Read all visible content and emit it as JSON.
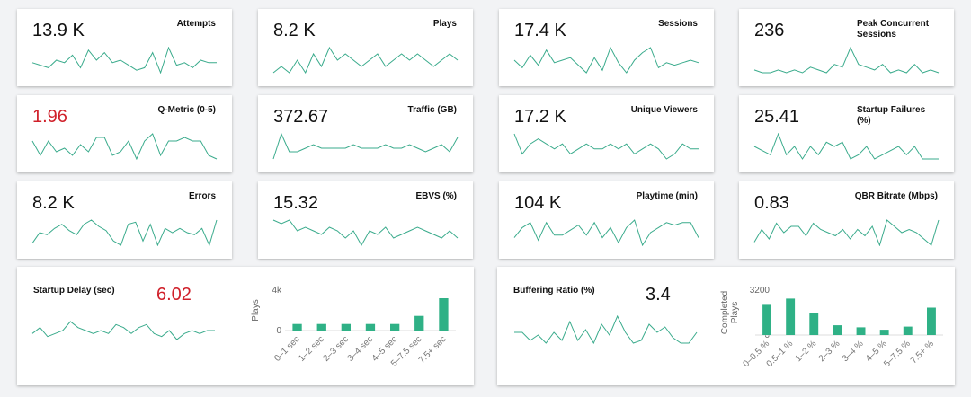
{
  "colors": {
    "accent": "#3aab8c",
    "alert": "#d0202a",
    "bar": "#2fb186"
  },
  "metrics": [
    {
      "value": "13.9 K",
      "label": "Attempts",
      "red": false,
      "trend": [
        5,
        4,
        3,
        6,
        5,
        8,
        3,
        10,
        6,
        9,
        5,
        6,
        4,
        2,
        3,
        9,
        1,
        11,
        4,
        5,
        3,
        6,
        5,
        5
      ]
    },
    {
      "value": "8.2 K",
      "label": "Plays",
      "red": false,
      "trend": [
        4,
        5,
        4,
        6,
        4,
        7,
        5,
        8,
        6,
        7,
        6,
        5,
        6,
        7,
        5,
        6,
        7,
        6,
        7,
        6,
        5,
        6,
        7,
        6
      ]
    },
    {
      "value": "17.4 K",
      "label": "Sessions",
      "red": false,
      "trend": [
        6,
        3,
        8,
        4,
        10,
        5,
        6,
        7,
        4,
        1,
        7,
        2,
        11,
        5,
        1,
        6,
        9,
        11,
        3,
        5,
        4,
        5,
        6,
        5
      ]
    },
    {
      "value": "236",
      "label": "Peak Concurrent Sessions",
      "red": false,
      "trend": [
        3,
        2,
        2,
        3,
        2,
        3,
        2,
        4,
        3,
        2,
        5,
        4,
        11,
        5,
        4,
        3,
        5,
        2,
        3,
        2,
        5,
        2,
        3,
        2
      ]
    },
    {
      "value": "1.96",
      "label": "Q-Metric (0-5)",
      "red": true,
      "trend": [
        7,
        3,
        7,
        4,
        5,
        3,
        6,
        4,
        8,
        8,
        3,
        4,
        7,
        2,
        7,
        9,
        3,
        7,
        7,
        8,
        7,
        7,
        3,
        2
      ]
    },
    {
      "value": "372.67",
      "label": "Traffic (GB)",
      "red": false,
      "trend": [
        3,
        10,
        5,
        5,
        6,
        7,
        6,
        6,
        6,
        6,
        7,
        6,
        6,
        6,
        7,
        6,
        6,
        7,
        6,
        5,
        6,
        7,
        5,
        9
      ]
    },
    {
      "value": "17.2 K",
      "label": "Unique Viewers",
      "red": false,
      "trend": [
        8,
        4,
        6,
        7,
        6,
        5,
        6,
        4,
        5,
        6,
        5,
        5,
        6,
        5,
        6,
        4,
        5,
        6,
        5,
        3,
        4,
        6,
        5,
        5
      ]
    },
    {
      "value": "25.41",
      "label": "Startup Failures (%)",
      "red": false,
      "trend": [
        6,
        5,
        4,
        9,
        4,
        6,
        3,
        6,
        4,
        7,
        6,
        7,
        3,
        4,
        6,
        3,
        4,
        5,
        6,
        4,
        6,
        3,
        3,
        3
      ]
    },
    {
      "value": "8.2 K",
      "label": "Errors",
      "red": false,
      "trend": [
        2,
        7,
        6,
        9,
        11,
        8,
        6,
        11,
        13,
        10,
        8,
        3,
        1,
        11,
        12,
        3,
        11,
        1,
        9,
        7,
        9,
        7,
        6,
        9,
        1,
        13
      ]
    },
    {
      "value": "15.32",
      "label": "EBVS (%)",
      "red": false,
      "trend": [
        9,
        8,
        9,
        6,
        7,
        6,
        5,
        7,
        6,
        4,
        6,
        2,
        6,
        5,
        7,
        4,
        5,
        6,
        7,
        6,
        5,
        4,
        6,
        4
      ]
    },
    {
      "value": "104 K",
      "label": "Playtime (min)",
      "red": false,
      "trend": [
        4,
        8,
        10,
        3,
        10,
        5,
        5,
        7,
        9,
        5,
        10,
        4,
        8,
        2,
        8,
        11,
        1,
        6,
        8,
        10,
        9,
        10,
        10,
        4
      ]
    },
    {
      "value": "0.83",
      "label": "QBR Bitrate (Mbps)",
      "red": false,
      "trend": [
        2,
        6,
        3,
        8,
        5,
        7,
        7,
        4,
        8,
        6,
        5,
        4,
        6,
        3,
        6,
        4,
        7,
        1,
        9,
        7,
        5,
        6,
        5,
        3,
        1,
        9
      ]
    }
  ],
  "startup_panel": {
    "label": "Startup Delay (sec)",
    "value": "6.02",
    "trend": [
      5,
      7,
      4,
      5,
      6,
      9,
      7,
      6,
      5,
      6,
      5,
      8,
      7,
      5,
      7,
      8,
      5,
      4,
      6,
      3,
      5,
      6,
      5,
      6,
      6
    ],
    "chart_data": {
      "type": "bar",
      "ylabel": "Plays",
      "ytick_labels": [
        "4k",
        "0"
      ],
      "ylim": [
        0,
        4000
      ],
      "categories": [
        "0–1 sec",
        "1–2 sec",
        "2–3 sec",
        "3–4 sec",
        "4–5 sec",
        "5–7.5 sec",
        "7.5+ sec"
      ],
      "values": [
        650,
        650,
        650,
        650,
        650,
        1450,
        3200
      ]
    }
  },
  "buffering_panel": {
    "label": "Buffering Ratio (%)",
    "value": "3.4",
    "trend": [
      5,
      5,
      2,
      4,
      1,
      5,
      2,
      9,
      2,
      6,
      1,
      8,
      4,
      11,
      5,
      1,
      2,
      8,
      5,
      7,
      3,
      1,
      1,
      5
    ],
    "chart_data": {
      "type": "bar",
      "ylabel": "Completed Plays",
      "ytick_labels": [
        "3200",
        "0"
      ],
      "ylim": [
        0,
        3200
      ],
      "categories": [
        "0–0.5 %",
        "0.5–1 %",
        "1–2 %",
        "2–3 %",
        "3–4 %",
        "4–5 %",
        "5–7.5 %",
        "7.5+ %"
      ],
      "values": [
        2150,
        2600,
        1550,
        700,
        550,
        380,
        600,
        1950
      ]
    }
  }
}
